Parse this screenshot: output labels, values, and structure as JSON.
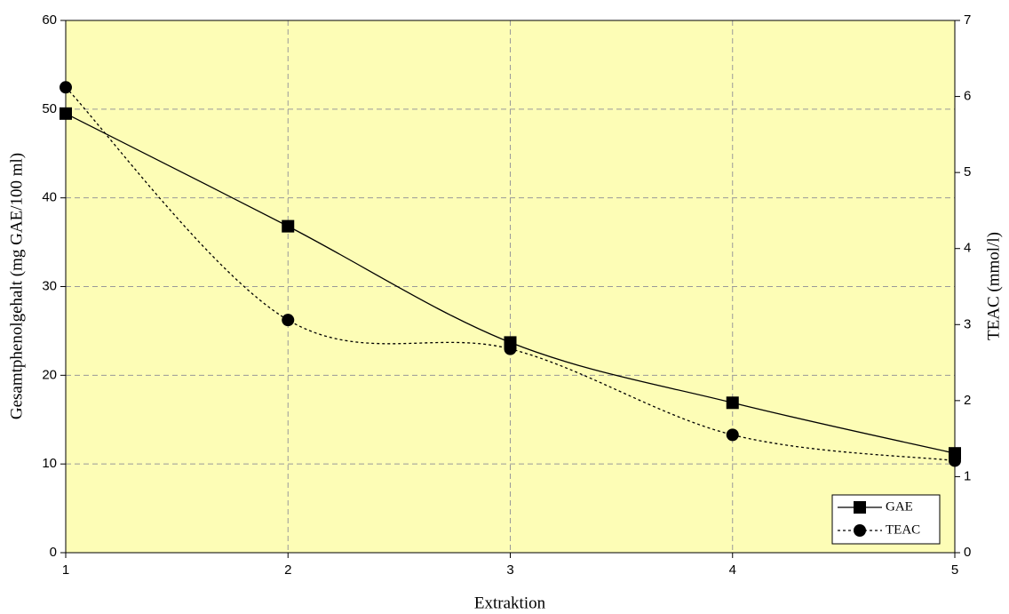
{
  "chart_data": {
    "type": "line",
    "x_label": "Extraktion",
    "y_label": "Gesamtphenolgehalt (mg GAE/100 ml)",
    "y2_label": "TEAC (mmol/l)",
    "x": [
      1,
      2,
      3,
      4,
      5
    ],
    "xlim": [
      1,
      5
    ],
    "xticks": [
      1,
      2,
      3,
      4,
      5
    ],
    "ylim": [
      0,
      60
    ],
    "yticks": [
      0,
      10,
      20,
      30,
      40,
      50,
      60
    ],
    "y2lim": [
      0,
      7
    ],
    "y2ticks": [
      0,
      1,
      2,
      3,
      4,
      5,
      6,
      7
    ],
    "grid": true,
    "background": "#fdfdb6",
    "legend": "lower right",
    "series": [
      {
        "name": "GAE",
        "color": "#000000",
        "marker": "square",
        "line_style": "solid",
        "values": [
          49.5,
          36.8,
          23.7,
          16.9,
          11.2
        ]
      },
      {
        "name": "TEAC",
        "color": "#000000",
        "marker": "circle",
        "line_style": "dotted",
        "axis": "y2",
        "values": [
          6.12,
          3.06,
          2.68,
          1.55,
          1.21
        ]
      }
    ]
  }
}
